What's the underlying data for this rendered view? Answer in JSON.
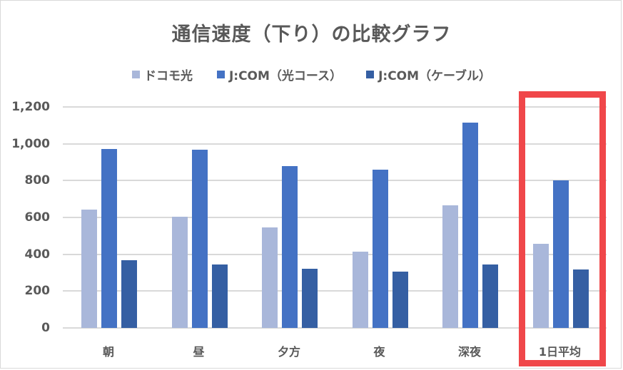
{
  "chart_data": {
    "type": "bar",
    "title": "通信速度（下り）の比較グラフ",
    "xlabel": "",
    "ylabel": "",
    "categories": [
      "朝",
      "昼",
      "夕方",
      "夜",
      "深夜",
      "1日平均"
    ],
    "series": [
      {
        "name": "ドコモ光",
        "color": "#a9b7da",
        "values": [
          643,
          604,
          546,
          414,
          666,
          457
        ]
      },
      {
        "name": "J:COM（光コース）",
        "color": "#4472c4",
        "values": [
          972,
          968,
          879,
          860,
          1115,
          801
        ]
      },
      {
        "name": "J:COM（ケーブル）",
        "color": "#355fa3",
        "values": [
          368,
          345,
          321,
          306,
          345,
          317
        ]
      }
    ],
    "ylim": [
      0,
      1200
    ],
    "yticks": [
      "0",
      "200",
      "400",
      "600",
      "800",
      "1,000",
      "1,200"
    ],
    "grid": true,
    "legend_position": "top",
    "annotations": [
      {
        "type": "highlight-box",
        "target": "1日平均",
        "color": "#f0474a"
      }
    ]
  }
}
